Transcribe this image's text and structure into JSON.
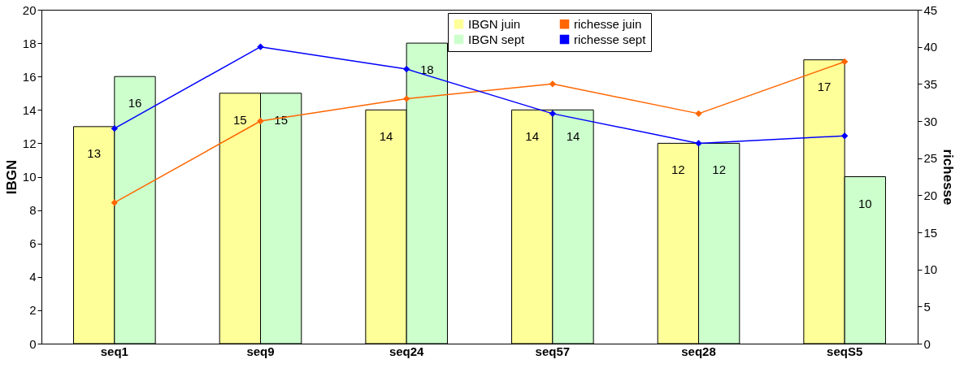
{
  "chart_data": {
    "type": "bar",
    "ylabel": "IBGN",
    "y2label": "richesse",
    "categories": [
      "seq1",
      "seq9",
      "seq24",
      "seq57",
      "seq28",
      "seqS5"
    ],
    "series": [
      {
        "name": "IBGN juin",
        "color": "#ffff99",
        "values": [
          13,
          15,
          14,
          14,
          12,
          17
        ],
        "value_labels": [
          "13",
          "15",
          "14",
          "14",
          "12",
          "17"
        ]
      },
      {
        "name": "IBGN sept",
        "color": "#ccffcc",
        "values": [
          16,
          15,
          18,
          14,
          12,
          10
        ],
        "value_labels": [
          "16",
          "15",
          "18",
          "14",
          "12",
          "10"
        ]
      },
      {
        "name": "richesse juin",
        "type": "line",
        "axis": "y2",
        "color": "#ff6600",
        "marker": "diamond",
        "values": [
          19,
          30,
          33,
          35,
          31,
          38
        ]
      },
      {
        "name": "richesse sept",
        "type": "line",
        "axis": "y2",
        "color": "#0000ff",
        "marker": "diamond",
        "values": [
          29,
          40,
          37,
          31,
          27,
          28
        ]
      }
    ],
    "ylim": [
      0,
      20
    ],
    "yticks": [
      0,
      2,
      4,
      6,
      8,
      10,
      12,
      14,
      16,
      18,
      20
    ],
    "y2lim": [
      0,
      45
    ],
    "y2ticks": [
      0,
      5,
      10,
      15,
      20,
      25,
      30,
      35,
      40,
      45
    ],
    "legend": "top right",
    "grid": false
  }
}
